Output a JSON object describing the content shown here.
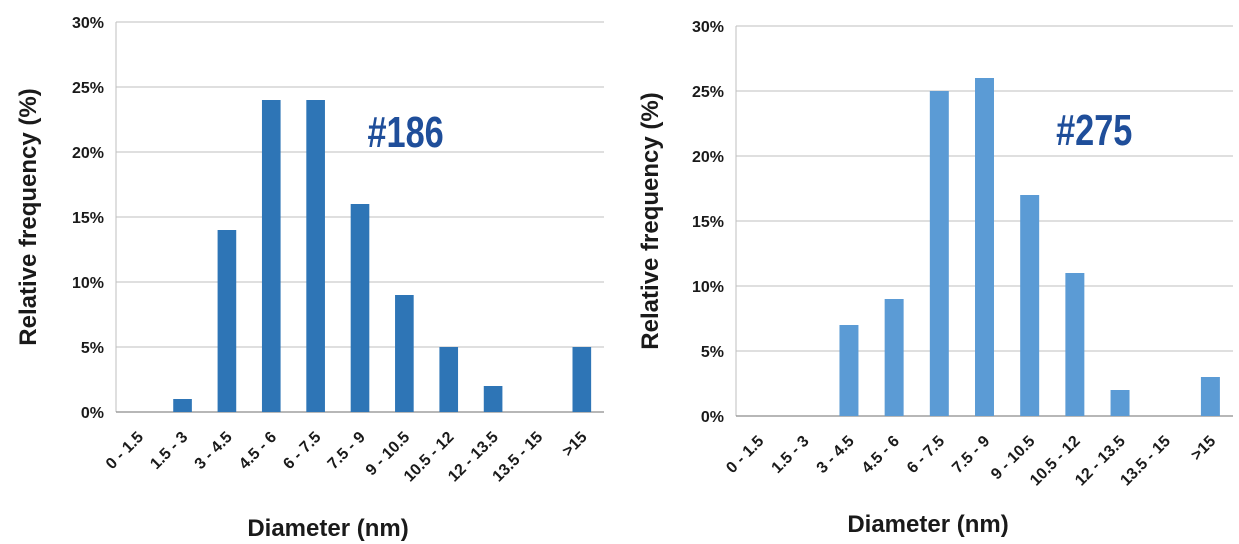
{
  "chart_data": [
    {
      "type": "bar",
      "annotation": "#186",
      "xlabel": "Diameter (nm)",
      "ylabel": "Relative frequency (%)",
      "categories": [
        "0 - 1.5",
        "1.5 - 3",
        "3 - 4.5",
        "4.5 - 6",
        "6 - 7.5",
        "7.5 - 9",
        "9 - 10.5",
        "10.5 - 12",
        "12 - 13.5",
        "13.5 - 15",
        ">15"
      ],
      "values": [
        0,
        1,
        14,
        24,
        24,
        16,
        9,
        5,
        2,
        0,
        5
      ],
      "ylim": [
        0,
        30
      ],
      "yticks": [
        0,
        5,
        10,
        15,
        20,
        25,
        30
      ],
      "ytick_labels": [
        "0%",
        "5%",
        "10%",
        "15%",
        "20%",
        "25%",
        "30%"
      ],
      "grid": true,
      "legend": "none",
      "bar_color": "#2e75b6",
      "annotation_color": "#1f4e9a"
    },
    {
      "type": "bar",
      "annotation": "#275",
      "xlabel": "Diameter (nm)",
      "ylabel": "Relative frequency (%)",
      "categories": [
        "0 - 1.5",
        "1.5 - 3",
        "3 - 4.5",
        "4.5 - 6",
        "6 - 7.5",
        "7.5 - 9",
        "9 - 10.5",
        "10.5 - 12",
        "12 - 13.5",
        "13.5 - 15",
        ">15"
      ],
      "values": [
        0,
        0,
        7,
        9,
        25,
        26,
        17,
        11,
        2,
        0,
        3
      ],
      "ylim": [
        0,
        30
      ],
      "yticks": [
        0,
        5,
        10,
        15,
        20,
        25,
        30
      ],
      "ytick_labels": [
        "0%",
        "5%",
        "10%",
        "15%",
        "20%",
        "25%",
        "30%"
      ],
      "grid": true,
      "legend": "none",
      "bar_color": "#5b9bd5",
      "annotation_color": "#1f4e9a"
    }
  ]
}
